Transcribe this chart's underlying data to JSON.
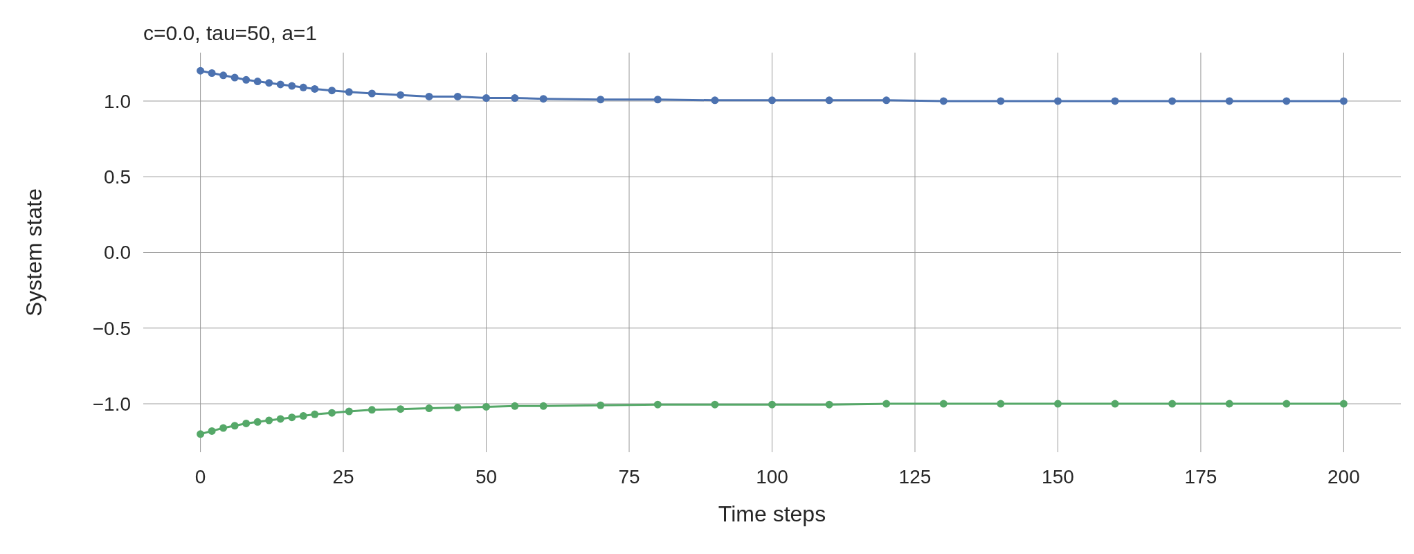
{
  "chart_data": {
    "type": "line",
    "title": "c=0.0, tau=50, a=1",
    "xlabel": "Time steps",
    "ylabel": "System state",
    "series": [
      {
        "color": "#4c72b0",
        "x": [
          0,
          2,
          4,
          6,
          8,
          10,
          12,
          14,
          16,
          18,
          20,
          23,
          26,
          30,
          35,
          40,
          45,
          50,
          55,
          60,
          70,
          80,
          90,
          100,
          110,
          120,
          130,
          140,
          150,
          160,
          170,
          180,
          190,
          200
        ],
        "values": [
          1.2,
          1.185,
          1.17,
          1.155,
          1.14,
          1.13,
          1.12,
          1.11,
          1.1,
          1.09,
          1.08,
          1.07,
          1.06,
          1.05,
          1.04,
          1.03,
          1.03,
          1.02,
          1.02,
          1.015,
          1.01,
          1.01,
          1.005,
          1.005,
          1.005,
          1.005,
          1.0,
          1.0,
          1.0,
          1.0,
          1.0,
          1.0,
          1.0,
          1.0
        ]
      },
      {
        "color": "#55a868",
        "x": [
          0,
          2,
          4,
          6,
          8,
          10,
          12,
          14,
          16,
          18,
          20,
          23,
          26,
          30,
          35,
          40,
          45,
          50,
          55,
          60,
          70,
          80,
          90,
          100,
          110,
          120,
          130,
          140,
          150,
          160,
          170,
          180,
          190,
          200
        ],
        "values": [
          -1.2,
          -1.18,
          -1.16,
          -1.145,
          -1.13,
          -1.12,
          -1.11,
          -1.1,
          -1.09,
          -1.08,
          -1.07,
          -1.06,
          -1.05,
          -1.04,
          -1.035,
          -1.03,
          -1.025,
          -1.02,
          -1.015,
          -1.015,
          -1.01,
          -1.005,
          -1.005,
          -1.005,
          -1.005,
          -1.0,
          -1.0,
          -1.0,
          -1.0,
          -1.0,
          -1.0,
          -1.0,
          -1.0,
          -1.0
        ]
      }
    ],
    "xlim": [
      -10,
      210
    ],
    "xticks": [
      0,
      25,
      50,
      75,
      100,
      125,
      150,
      175,
      200
    ],
    "ylim": [
      -1.32,
      1.32
    ],
    "yticks": [
      {
        "value": -1.0,
        "label": "−1.0"
      },
      {
        "value": -0.5,
        "label": "−0.5"
      },
      {
        "value": 0,
        "label": "0.0"
      },
      {
        "value": 0.5,
        "label": "0.5"
      },
      {
        "value": 1.0,
        "label": "1.0"
      }
    ],
    "grid": true,
    "marker": "circle",
    "line_style": "solid"
  }
}
